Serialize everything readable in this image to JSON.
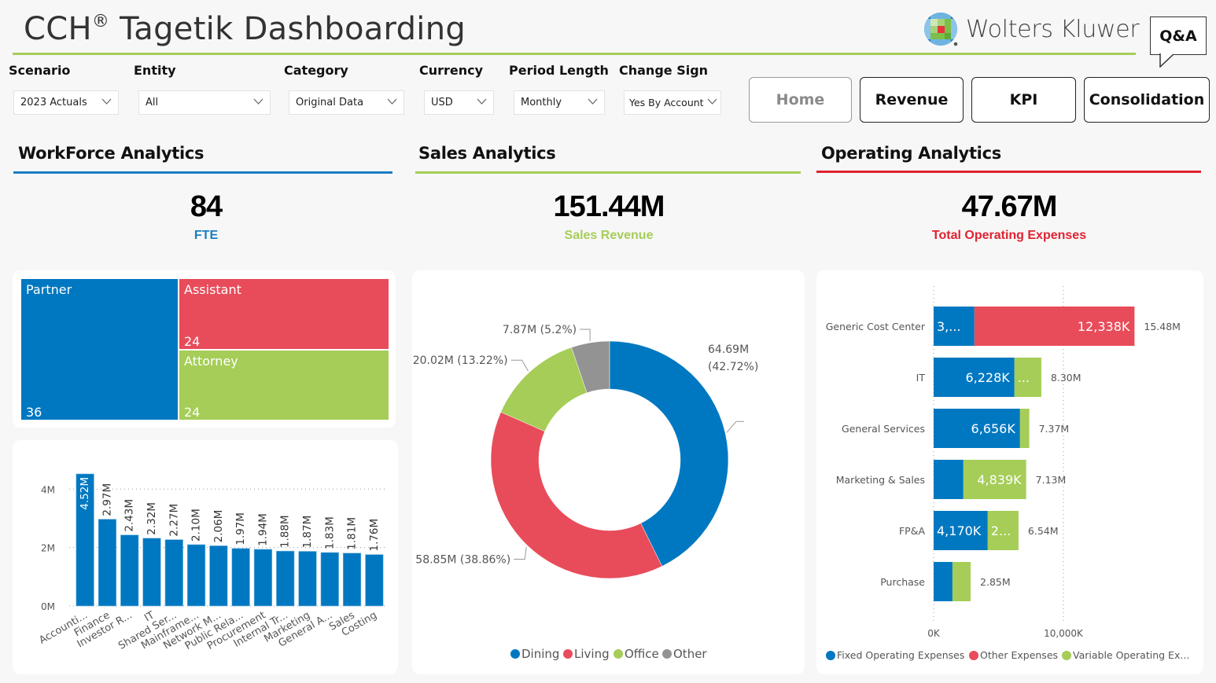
{
  "header": {
    "title_main": "CCH",
    "title_reg": "®",
    "title_rest": "Tagetik Dashboarding",
    "logo_text": "Wolters Kluwer",
    "qa_label": "Q&A"
  },
  "filters": [
    {
      "label": "Scenario",
      "value": "2023 Actuals"
    },
    {
      "label": "Entity",
      "value": "All"
    },
    {
      "label": "Category",
      "value": "Original Data"
    },
    {
      "label": "Currency",
      "value": "USD"
    },
    {
      "label": "Period Length",
      "value": "Monthly"
    },
    {
      "label": "Change Sign",
      "value": "Yes By Account"
    }
  ],
  "nav": [
    {
      "label": "Home",
      "active": true
    },
    {
      "label": "Revenue"
    },
    {
      "label": "KPI"
    },
    {
      "label": "Consolidation"
    }
  ],
  "colors": {
    "blue": "#0078c1",
    "red": "#e84c5a",
    "green": "#a5cd57",
    "gray": "#939393",
    "title_rule": "#a6cd57"
  },
  "sections": {
    "workforce": {
      "title": "WorkForce Analytics",
      "kpi_value": "84",
      "kpi_label": "FTE",
      "accent": "#1a7cc1"
    },
    "sales": {
      "title": "Sales Analytics",
      "kpi_value": "151.44M",
      "kpi_label": "Sales Revenue",
      "accent": "#a6cd57"
    },
    "operating": {
      "title": "Operating Analytics",
      "kpi_value": "47.67M",
      "kpi_label": "Total Operating Expenses",
      "accent": "#e02230"
    }
  },
  "chart_data": [
    {
      "type": "treemap",
      "title": "FTE by Role",
      "items": [
        {
          "name": "Partner",
          "value": 36,
          "label": "36"
        },
        {
          "name": "Assistant",
          "value": 24,
          "label": "24"
        },
        {
          "name": "Attorney",
          "value": 24,
          "label": "24"
        }
      ]
    },
    {
      "type": "bar",
      "categories": [
        "Accounti...",
        "Finance",
        "Investor R...",
        "IT",
        "Shared Ser...",
        "Mainframe...",
        "Network M...",
        "Public Rela...",
        "Procurement",
        "Internal Tr...",
        "Marketing",
        "General A...",
        "Sales",
        "Costing"
      ],
      "values": [
        4.52,
        2.97,
        2.43,
        2.32,
        2.27,
        2.1,
        2.06,
        1.97,
        1.94,
        1.88,
        1.87,
        1.83,
        1.81,
        1.76
      ],
      "data_labels": [
        "4.52M",
        "2.97M",
        "2.43M",
        "2.32M",
        "2.27M",
        "2.10M",
        "2.06M",
        "1.97M",
        "1.94M",
        "1.88M",
        "1.87M",
        "1.83M",
        "1.81M",
        "1.76M"
      ],
      "yticks": [
        "0M",
        "2M",
        "4M"
      ],
      "ytick_values": [
        0,
        2,
        4
      ],
      "ylim": [
        0,
        4.6
      ],
      "unit": "M",
      "grid": true
    },
    {
      "type": "pie",
      "donut": true,
      "slices": [
        {
          "name": "Dining",
          "value": 64.69,
          "percent": 42.72,
          "label_line1": "64.69M",
          "label_line2": "(42.72%)",
          "color": "#0078c1"
        },
        {
          "name": "Living",
          "value": 58.85,
          "percent": 38.86,
          "label_line1": "58.85M (38.86%)",
          "color": "#e84c5a"
        },
        {
          "name": "Office",
          "value": 20.02,
          "percent": 13.22,
          "label_line1": "20.02M (13.22%)",
          "color": "#a5cd57"
        },
        {
          "name": "Other",
          "value": 7.87,
          "percent": 5.2,
          "label_line1": "7.87M (5.2%)",
          "color": "#939393"
        }
      ],
      "legend": [
        "Dining",
        "Living",
        "Office",
        "Other"
      ],
      "legend_position": "bottom"
    },
    {
      "type": "bar",
      "orientation": "horizontal",
      "stacked": true,
      "categories": [
        "Generic Cost Center",
        "IT",
        "General Services",
        "Marketing & Sales",
        "FP&A",
        "Purchase"
      ],
      "series": [
        {
          "name": "Fixed Operating Expenses",
          "color": "#0078c1",
          "values": [
            3140,
            6228,
            6656,
            2291,
            4170,
            1450
          ],
          "labels": [
            "3,...",
            "6,228K",
            "6,656K",
            "",
            "4,170K",
            ""
          ]
        },
        {
          "name": "Other Expenses",
          "color": "#e84c5a",
          "values": [
            12338,
            0,
            0,
            0,
            0,
            0
          ],
          "labels": [
            "12,338K",
            "",
            "",
            "",
            "",
            ""
          ]
        },
        {
          "name": "Variable Operating Expenses",
          "color": "#a5cd57",
          "values": [
            0,
            2070,
            714,
            4839,
            2370,
            1400
          ],
          "labels": [
            "",
            "...",
            "",
            "4,839K",
            "2...",
            ""
          ]
        }
      ],
      "totals": [
        "15.48M",
        "8.30M",
        "7.37M",
        "7.13M",
        "6.54M",
        "2.85M"
      ],
      "xticks": [
        "0K",
        "10,000K"
      ],
      "xtick_values": [
        0,
        10000
      ],
      "xlim": [
        0,
        20000
      ],
      "legend": [
        "Fixed Operating Expenses",
        "Other Expenses",
        "Variable Operating Ex..."
      ],
      "legend_position": "bottom",
      "grid": true
    }
  ]
}
